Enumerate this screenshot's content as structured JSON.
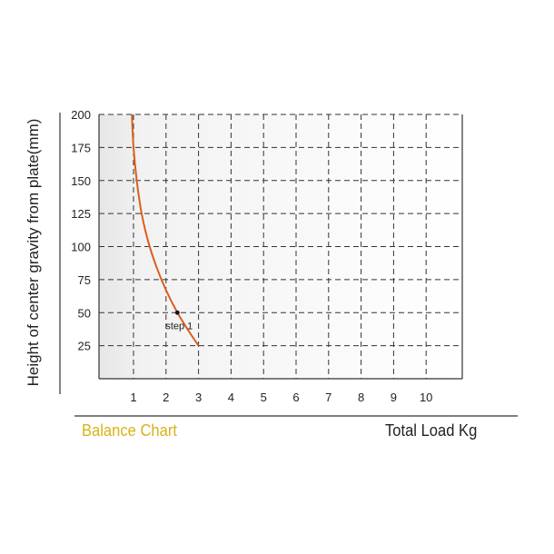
{
  "chart_data": {
    "type": "line",
    "ylabel": "Height of center gravity from plate(mm)",
    "xlim": [
      0,
      11
    ],
    "ylim": [
      0,
      200
    ],
    "xticks": [
      1,
      2,
      3,
      4,
      5,
      6,
      7,
      8,
      9,
      10
    ],
    "yticks": [
      25,
      50,
      75,
      100,
      125,
      150,
      175,
      200
    ],
    "grid": true,
    "series": [
      {
        "color": "#d9601c",
        "x": [
          0.95,
          1.0,
          1.1,
          1.25,
          1.45,
          1.7,
          2.0,
          2.35,
          2.7,
          3.0
        ],
        "y": [
          200,
          175,
          150,
          125,
          104,
          85,
          67,
          50,
          36,
          25
        ]
      }
    ],
    "annotations": [
      {
        "text": "step 1",
        "x": 2.35,
        "y": 50
      }
    ]
  },
  "footer": {
    "left_label": "Balance Chart",
    "right_label": "Total Load Kg"
  },
  "colors": {
    "accent_footer": "#d9b21a",
    "curve": "#d9601c"
  }
}
